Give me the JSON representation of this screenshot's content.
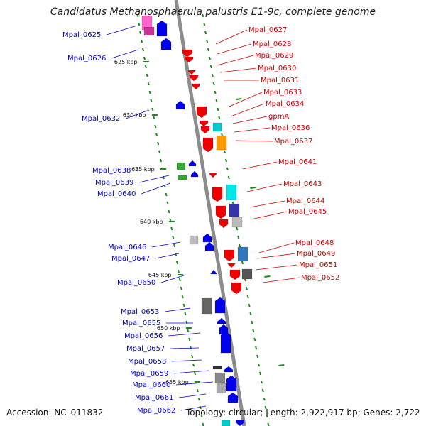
{
  "title": "Candidatus Methanosphaerula palustris E1-9c, complete genome",
  "footer": {
    "accession": "Accession: NC_011832",
    "stats": "Topology: circular; Length: 2,922,917 bp; Genes: 2,722"
  },
  "colors": {
    "backbone": "#8c8c8c",
    "forward_label": "#cc0000",
    "reverse_label": "#0000cc",
    "dots": "#1a8a1a"
  },
  "ticks": [
    {
      "label": "625 kbp"
    },
    {
      "label": "630 kbp"
    },
    {
      "label": "635 kbp"
    },
    {
      "label": "640 kbp"
    },
    {
      "label": "645 kbp"
    },
    {
      "label": "650 kbp"
    },
    {
      "label": "655 kbp"
    }
  ],
  "left_genes": [
    "Mpal_0625",
    "Mpal_0626",
    "Mpal_0632",
    "Mpal_0638",
    "Mpal_0639",
    "Mpal_0640",
    "Mpal_0646",
    "Mpal_0647",
    "Mpal_0650",
    "Mpal_0653",
    "Mpal_0655",
    "Mpal_0656",
    "Mpal_0657",
    "Mpal_0658",
    "Mpal_0659",
    "Mpal_0660",
    "Mpal_0661",
    "Mpal_0662"
  ],
  "right_genes": [
    "Mpal_0627",
    "Mpal_0628",
    "Mpal_0629",
    "Mpal_0630",
    "Mpal_0631",
    "Mpal_0633",
    "Mpal_0634",
    "gpmA",
    "Mpal_0636",
    "Mpal_0637",
    "Mpal_0641",
    "Mpal_0643",
    "Mpal_0644",
    "Mpal_0645",
    "Mpal_0648",
    "Mpal_0649",
    "Mpal_0651",
    "Mpal_0652"
  ]
}
